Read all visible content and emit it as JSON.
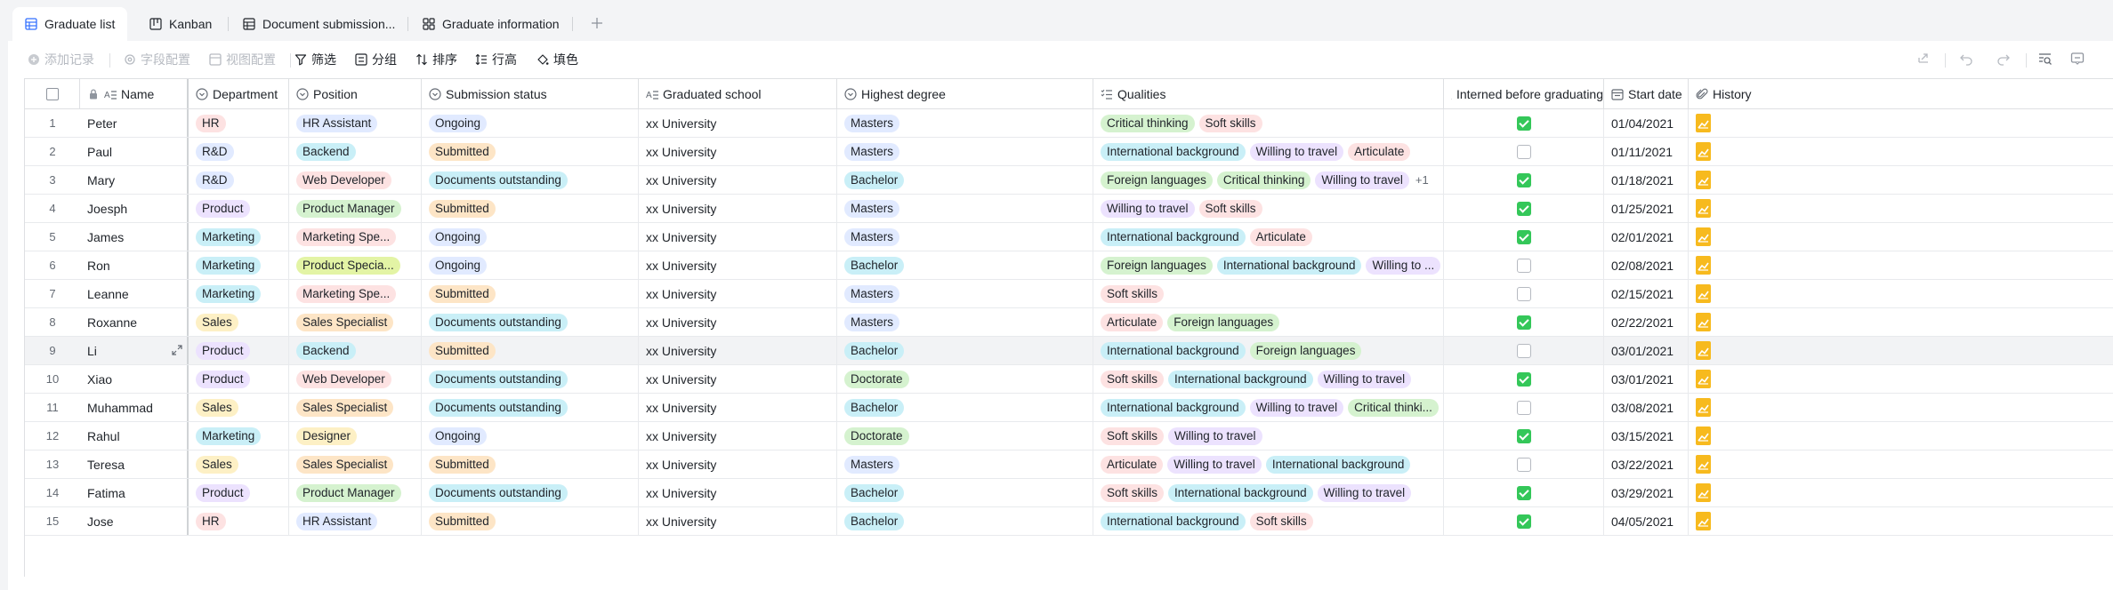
{
  "tabs": [
    {
      "label": "Graduate list",
      "icon": "grid-icon",
      "active": true
    },
    {
      "label": "Kanban",
      "icon": "kanban-icon",
      "active": false
    },
    {
      "label": "Document submission...",
      "icon": "table-icon",
      "active": false
    },
    {
      "label": "Graduate information",
      "icon": "gallery-icon",
      "active": false
    }
  ],
  "toolbar": {
    "add_record": "添加记录",
    "field_config": "字段配置",
    "view_config": "视图配置",
    "filter": "筛选",
    "group": "分组",
    "sort": "排序",
    "row_height": "行高",
    "fill_color": "填色"
  },
  "columns": [
    {
      "label": "Name",
      "icon": "text-icon"
    },
    {
      "label": "Department",
      "icon": "single-select-icon"
    },
    {
      "label": "Position",
      "icon": "single-select-icon"
    },
    {
      "label": "Submission status",
      "icon": "single-select-icon"
    },
    {
      "label": "Graduated school",
      "icon": "text-icon"
    },
    {
      "label": "Highest degree",
      "icon": "single-select-icon"
    },
    {
      "label": "Qualities",
      "icon": "multi-select-icon"
    },
    {
      "label": "Interned before graduating",
      "icon": "checkbox-icon"
    },
    {
      "label": "Start date",
      "icon": "calendar-icon"
    },
    {
      "label": "History",
      "icon": "attachment-icon"
    }
  ],
  "colors": {
    "dept": {
      "HR": "#fde2e2",
      "R&D": "#e1eaff",
      "Product": "#ece2fe",
      "Marketing": "#c9eff7",
      "Sales": "#fdf0c5"
    },
    "pos": {
      "HR Assistant": "#e1eaff",
      "Backend": "#c9eff7",
      "Web Developer": "#fde2e2",
      "Product Manager": "#d5f2cf",
      "Marketing Spe...": "#fde2e2",
      "Product Specia...": "#e3f4a5",
      "Sales Specialist": "#fde5c6",
      "Designer": "#fdf0c5"
    },
    "status": {
      "Ongoing": "#e1eaff",
      "Submitted": "#fde5c6",
      "Documents outstanding": "#c9eff7"
    },
    "degree": {
      "Masters": "#e1eaff",
      "Bachelor": "#c9eff7",
      "Doctorate": "#d5f2cf"
    },
    "qual": {
      "Critical thinking": "#d5f2cf",
      "Soft skills": "#fde2e2",
      "International background": "#c9eff7",
      "Willing to travel": "#ece2fe",
      "Articulate": "#fde2e2",
      "Foreign languages": "#d5f2cf",
      "Willing to ...": "#ece2fe",
      "Critical thinki...": "#d5f2cf"
    },
    "accent": "#3370ff",
    "checkbox_on": "#34c759",
    "attachment": "#f7ba1e"
  },
  "rows": [
    {
      "no": "1",
      "name": "Peter",
      "dept": "HR",
      "pos": "HR Assistant",
      "status": "Ongoing",
      "school": "xx University",
      "degree": "Masters",
      "qualities": [
        "Critical thinking",
        "Soft skills"
      ],
      "more": "",
      "interned": true,
      "date": "01/04/2021"
    },
    {
      "no": "2",
      "name": "Paul",
      "dept": "R&D",
      "pos": "Backend",
      "status": "Submitted",
      "school": "xx University",
      "degree": "Masters",
      "qualities": [
        "International background",
        "Willing to travel",
        "Articulate"
      ],
      "more": "",
      "interned": false,
      "date": "01/11/2021"
    },
    {
      "no": "3",
      "name": "Mary",
      "dept": "R&D",
      "pos": "Web Developer",
      "status": "Documents outstanding",
      "school": "xx University",
      "degree": "Bachelor",
      "qualities": [
        "Foreign languages",
        "Critical thinking",
        "Willing to travel"
      ],
      "more": "+1",
      "interned": true,
      "date": "01/18/2021"
    },
    {
      "no": "4",
      "name": "Joesph",
      "dept": "Product",
      "pos": "Product Manager",
      "status": "Submitted",
      "school": "xx University",
      "degree": "Masters",
      "qualities": [
        "Willing to travel",
        "Soft skills"
      ],
      "more": "",
      "interned": true,
      "date": "01/25/2021"
    },
    {
      "no": "5",
      "name": "James",
      "dept": "Marketing",
      "pos": "Marketing Spe...",
      "status": "Ongoing",
      "school": "xx University",
      "degree": "Masters",
      "qualities": [
        "International background",
        "Articulate"
      ],
      "more": "",
      "interned": true,
      "date": "02/01/2021"
    },
    {
      "no": "6",
      "name": "Ron",
      "dept": "Marketing",
      "pos": "Product Specia...",
      "status": "Ongoing",
      "school": "xx University",
      "degree": "Bachelor",
      "qualities": [
        "Foreign languages",
        "International background",
        "Willing to ..."
      ],
      "more": "",
      "interned": false,
      "date": "02/08/2021"
    },
    {
      "no": "7",
      "name": "Leanne",
      "dept": "Marketing",
      "pos": "Marketing Spe...",
      "status": "Submitted",
      "school": "xx University",
      "degree": "Masters",
      "qualities": [
        "Soft skills"
      ],
      "more": "",
      "interned": false,
      "date": "02/15/2021"
    },
    {
      "no": "8",
      "name": "Roxanne",
      "dept": "Sales",
      "pos": "Sales Specialist",
      "status": "Documents outstanding",
      "school": "xx University",
      "degree": "Masters",
      "qualities": [
        "Articulate",
        "Foreign languages"
      ],
      "more": "",
      "interned": true,
      "date": "02/22/2021"
    },
    {
      "no": "9",
      "name": "Li",
      "dept": "Product",
      "pos": "Backend",
      "status": "Submitted",
      "school": "xx University",
      "degree": "Bachelor",
      "qualities": [
        "International background",
        "Foreign languages"
      ],
      "more": "",
      "interned": false,
      "date": "03/01/2021"
    },
    {
      "no": "10",
      "name": "Xiao",
      "dept": "Product",
      "pos": "Web Developer",
      "status": "Documents outstanding",
      "school": "xx University",
      "degree": "Doctorate",
      "qualities": [
        "Soft skills",
        "International background",
        "Willing to travel"
      ],
      "more": "",
      "interned": true,
      "date": "03/01/2021"
    },
    {
      "no": "11",
      "name": "Muhammad",
      "dept": "Sales",
      "pos": "Sales Specialist",
      "status": "Documents outstanding",
      "school": "xx University",
      "degree": "Bachelor",
      "qualities": [
        "International background",
        "Willing to travel",
        "Critical thinki..."
      ],
      "more": "",
      "interned": false,
      "date": "03/08/2021"
    },
    {
      "no": "12",
      "name": "Rahul",
      "dept": "Marketing",
      "pos": "Designer",
      "status": "Ongoing",
      "school": "xx University",
      "degree": "Doctorate",
      "qualities": [
        "Soft skills",
        "Willing to travel"
      ],
      "more": "",
      "interned": true,
      "date": "03/15/2021"
    },
    {
      "no": "13",
      "name": "Teresa",
      "dept": "Sales",
      "pos": "Sales Specialist",
      "status": "Submitted",
      "school": "xx University",
      "degree": "Masters",
      "qualities": [
        "Articulate",
        "Willing to travel",
        "International background"
      ],
      "more": "",
      "interned": false,
      "date": "03/22/2021"
    },
    {
      "no": "14",
      "name": "Fatima",
      "dept": "Product",
      "pos": "Product Manager",
      "status": "Documents outstanding",
      "school": "xx University",
      "degree": "Bachelor",
      "qualities": [
        "Soft skills",
        "International background",
        "Willing to travel"
      ],
      "more": "",
      "interned": true,
      "date": "03/29/2021"
    },
    {
      "no": "15",
      "name": "Jose",
      "dept": "HR",
      "pos": "HR Assistant",
      "status": "Submitted",
      "school": "xx University",
      "degree": "Bachelor",
      "qualities": [
        "International background",
        "Soft skills"
      ],
      "more": "",
      "interned": true,
      "date": "04/05/2021"
    }
  ]
}
